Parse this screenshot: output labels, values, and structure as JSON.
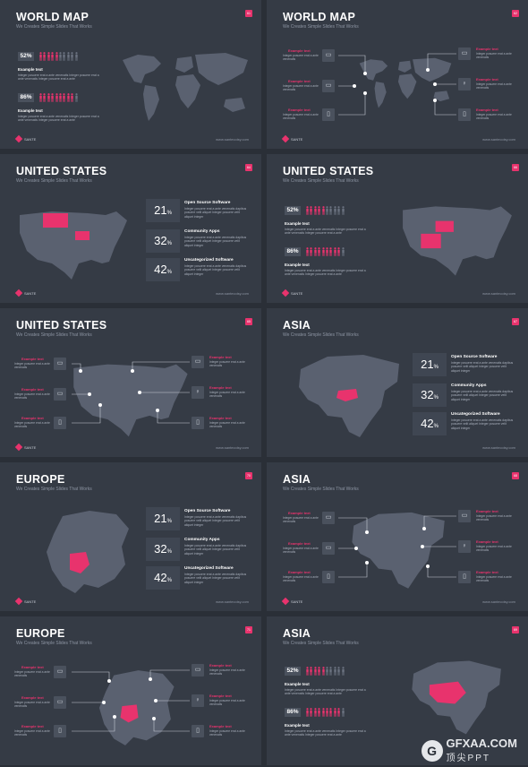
{
  "colors": {
    "accent": "#e8336d",
    "slide_bg": "#353b45",
    "map": "#5a6170"
  },
  "common": {
    "subtitle": "We Creates Simple Slides That Works",
    "brand": "SANTE",
    "url": "www.santecoisy.com",
    "example": "Example text",
    "lorem": "Integer posuere erat a ante venenatis Integer posuere erat a ante venenatis Integer posuere erat a ante",
    "lorem_short": "Integer posuere erat a ante venenatis dapibus posuere velit aliquet Integer posuere velit aliquet integer",
    "lorem_tiny": "Integer posuere erat a ante venenatis"
  },
  "stats": [
    {
      "value": "21",
      "unit": "%",
      "label": "Open Source Software"
    },
    {
      "value": "32",
      "unit": "%",
      "label": "Community Apps"
    },
    {
      "value": "42",
      "unit": "%",
      "label": "Uncategorized Software"
    }
  ],
  "bars": [
    {
      "pct": "52%",
      "level": 0.52
    },
    {
      "pct": "86%",
      "level": 0.86
    }
  ],
  "slides": [
    {
      "title": "WORLD MAP",
      "num": "61"
    },
    {
      "title": "WORLD MAP",
      "num": "62"
    },
    {
      "title": "UNITED STATES",
      "num": "64"
    },
    {
      "title": "UNITED STATES",
      "num": "66"
    },
    {
      "title": "UNITED STATES",
      "num": "65"
    },
    {
      "title": "ASIA",
      "num": "67"
    },
    {
      "title": "EUROPE",
      "num": "70"
    },
    {
      "title": "ASIA",
      "num": "68"
    },
    {
      "title": "EUROPE",
      "num": "71"
    },
    {
      "title": "ASIA",
      "num": "69"
    }
  ],
  "watermark": {
    "logo": "G",
    "name": "GFXAA.COM",
    "cn": "顶尖PPT"
  }
}
